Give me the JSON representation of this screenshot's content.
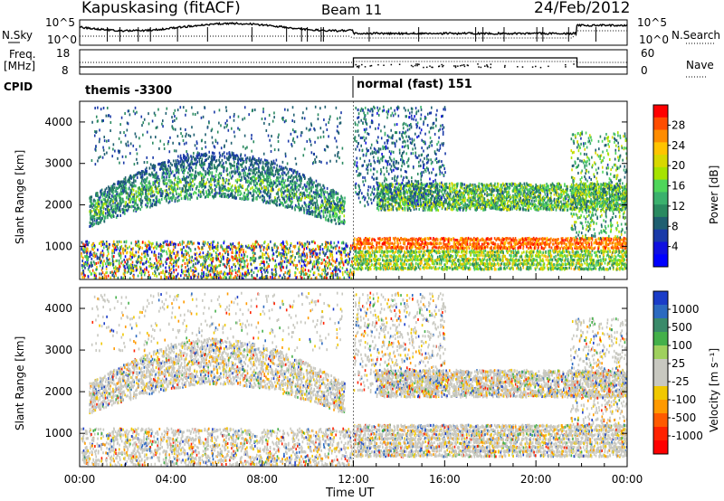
{
  "header": {
    "station": "Kapuskasing (fitACF)",
    "beam": "Beam 11",
    "date": "24/Feb/2012"
  },
  "strips": {
    "nsky_label": "N.Sky",
    "nsky_ticks": [
      "10^5",
      "10^0"
    ],
    "nsearch_label": "N.Search",
    "freq_label_line1": "Freq.",
    "freq_label_line2": "[MHz]",
    "freq_ticks": [
      "18",
      "8"
    ],
    "nave_ticks": [
      "60",
      "0"
    ],
    "nave_label": "Nave",
    "cpid_label": "CPID",
    "cpid_segments": [
      {
        "text": "themis -3300",
        "start_hour": 0,
        "end_hour": 12
      },
      {
        "text": "normal (fast) 151",
        "start_hour": 12,
        "end_hour": 24
      }
    ],
    "colors": {
      "line": "#000000"
    }
  },
  "chart_data": [
    {
      "type": "heatmap",
      "panel": "power",
      "ylabel": "Slant Range [km]",
      "yticks": [
        1000,
        2000,
        3000,
        4000
      ],
      "ylim": [
        200,
        4500
      ],
      "xlim": [
        0,
        24
      ],
      "colorbar": {
        "label": "Power [dB]",
        "ticks": [
          "28",
          "24",
          "20",
          "16",
          "12",
          "8",
          "4"
        ],
        "colors_top_to_bottom": [
          "#ff0000",
          "#ff4d00",
          "#ff8c00",
          "#ffc400",
          "#d8d800",
          "#a6e300",
          "#4fd65a",
          "#3bb16d",
          "#2a8a60",
          "#1f5f70",
          "#1a3aa8",
          "#1010e0",
          "#0000ff"
        ]
      },
      "features": [
        {
          "name": "arc-band",
          "hours": [
            0.5,
            11.5
          ],
          "range_km": [
            1900,
            3200
          ]
        },
        {
          "name": "near-range",
          "hours": [
            0,
            24
          ],
          "range_km": [
            200,
            1200
          ]
        },
        {
          "name": "band-afternoon",
          "hours": [
            12,
            24
          ],
          "range_km": [
            1800,
            2600
          ]
        }
      ]
    },
    {
      "type": "heatmap",
      "panel": "velocity",
      "ylabel": "Slant Range [km]",
      "yticks": [
        1000,
        2000,
        3000,
        4000
      ],
      "ylim": [
        200,
        4500
      ],
      "xlim": [
        0,
        24
      ],
      "xticks": [
        "00:00",
        "04:00",
        "08:00",
        "12:00",
        "16:00",
        "20:00",
        "00:00"
      ],
      "xlabel": "Time UT",
      "colorbar": {
        "label": "Velocity [m s⁻¹]",
        "ticks": [
          "1000",
          "500",
          "100",
          "25",
          "-25",
          "-100",
          "-500",
          "-1000"
        ],
        "colors_top_to_bottom": [
          "#1a3cc8",
          "#2c6ac0",
          "#3a8a6a",
          "#44b04a",
          "#9fd05e",
          "#c8c8c0",
          "#c8c8c0",
          "#f0c800",
          "#ff9a00",
          "#ff5a00",
          "#ff2200",
          "#ff0000"
        ]
      }
    }
  ]
}
